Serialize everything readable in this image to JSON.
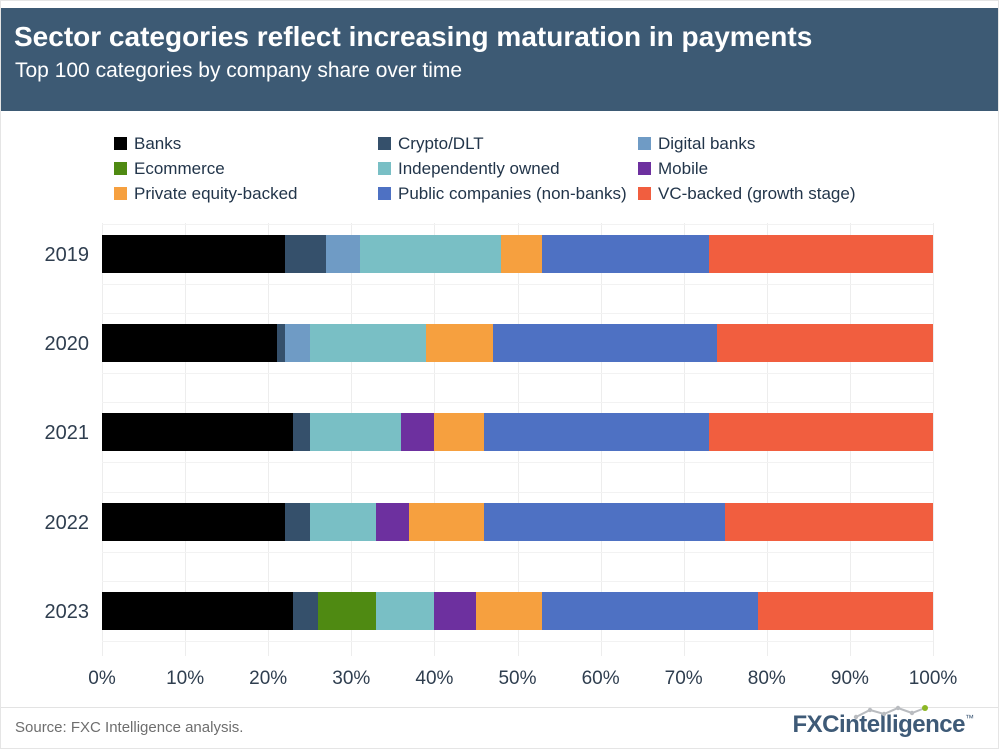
{
  "header": {
    "title": "Sector categories reflect increasing maturation in payments",
    "subtitle": "Top 100 categories by company share over time"
  },
  "chart_data": {
    "type": "bar",
    "variant": "horizontal-stacked",
    "title": "Top 100 categories by company share over time",
    "categories": [
      "2019",
      "2020",
      "2021",
      "2022",
      "2023"
    ],
    "series": [
      {
        "name": "Banks",
        "color": "#000000",
        "values": [
          22,
          21,
          23,
          22,
          23
        ]
      },
      {
        "name": "Crypto/DLT",
        "color": "#35506b",
        "values": [
          5,
          1,
          2,
          3,
          3
        ]
      },
      {
        "name": "Digital banks",
        "color": "#6f9bc5",
        "values": [
          4,
          3,
          0,
          0,
          0
        ]
      },
      {
        "name": "Ecommerce",
        "color": "#4f8a12",
        "values": [
          0,
          0,
          0,
          0,
          7
        ]
      },
      {
        "name": "Independently owned",
        "color": "#79bfc5",
        "values": [
          17,
          14,
          11,
          8,
          7
        ]
      },
      {
        "name": "Mobile",
        "color": "#6d309f",
        "values": [
          0,
          0,
          4,
          4,
          5
        ]
      },
      {
        "name": "Private equity-backed",
        "color": "#f6a03f",
        "values": [
          5,
          8,
          6,
          9,
          8
        ]
      },
      {
        "name": "Public companies (non-banks)",
        "color": "#4e71c3",
        "values": [
          20,
          27,
          27,
          29,
          26
        ]
      },
      {
        "name": "VC-backed (growth stage)",
        "color": "#f15e3f",
        "values": [
          27,
          26,
          27,
          25,
          21
        ]
      }
    ],
    "x_ticks": [
      "0%",
      "10%",
      "20%",
      "30%",
      "40%",
      "50%",
      "60%",
      "70%",
      "80%",
      "90%",
      "100%"
    ],
    "xlim": [
      0,
      100
    ],
    "unit": "percent",
    "grid": "vertical",
    "legend_position": "top"
  },
  "footer": {
    "source": "Source: FXC Intelligence analysis.",
    "logo": {
      "part1": "FXC",
      "part2": "intelligence",
      "trademark": "™"
    }
  },
  "colors": {
    "header_bg": "#3d5a74",
    "header_text": "#ffffff",
    "axis_text": "#2f3e4f",
    "legend_text": "#22354a",
    "gridline": "#ededed",
    "source_text": "#6e6e6e",
    "logo_text": "#3e5a77",
    "logo_accent_green": "#8cb724",
    "logo_sparkline_gray": "#b9bcc0"
  }
}
